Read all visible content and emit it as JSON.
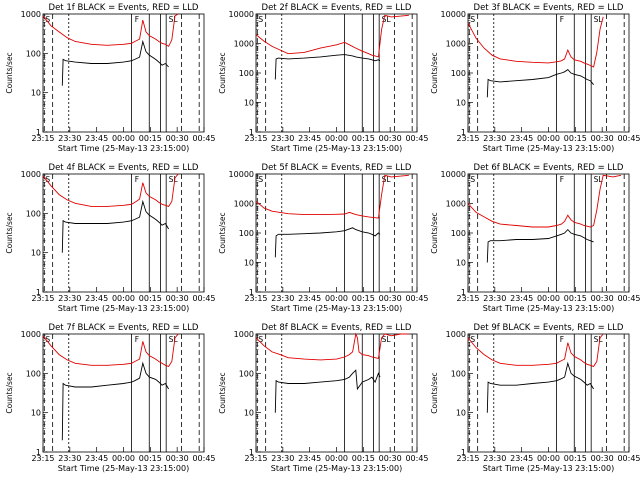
{
  "figure": {
    "background": "#ffffff",
    "events_color": "#000000",
    "lld_color": "#e00000"
  },
  "chart_data": [
    {
      "type": "line",
      "title": "Det 1f BLACK = Events, RED = LLD",
      "xlabel": "Start Time (25-May-13 23:15:00)",
      "ylabel": "Counts/sec",
      "ylog": true,
      "ylim": [
        1,
        1000
      ],
      "xlim": [
        0,
        100
      ],
      "x_ticks": [
        "23:15",
        "23:30",
        "23:45",
        "00:00",
        "00:15",
        "00:30",
        "00:45"
      ],
      "y_ticks": [
        "1",
        "10",
        "100",
        "1000"
      ],
      "markers": [
        "S",
        "F",
        "SL"
      ],
      "series": [
        {
          "name": "Events",
          "x": [
            12,
            12.5,
            14,
            20,
            30,
            40,
            50,
            55,
            57,
            60,
            62,
            64,
            66,
            70,
            72,
            74,
            76,
            78
          ],
          "y": [
            15,
            70,
            65,
            60,
            55,
            55,
            60,
            65,
            70,
            80,
            200,
            110,
            90,
            70,
            60,
            50,
            55,
            45
          ]
        },
        {
          "name": "LLD",
          "x": [
            0,
            5,
            10,
            15,
            20,
            30,
            40,
            50,
            55,
            57,
            60,
            62,
            64,
            66,
            70,
            72,
            74,
            76,
            78,
            80,
            82,
            84
          ],
          "y": [
            900,
            500,
            350,
            250,
            200,
            170,
            160,
            170,
            180,
            200,
            230,
            700,
            350,
            280,
            230,
            200,
            180,
            170,
            150,
            220,
            900,
            1000
          ]
        }
      ]
    },
    {
      "type": "line",
      "title": "Det 2f BLACK = Events, RED = LLD",
      "xlabel": "Start Time (25-May-13 23:15:00)",
      "ylabel": "Counts/sec",
      "ylog": true,
      "ylim": [
        1,
        10000
      ],
      "xlim": [
        0,
        100
      ],
      "x_ticks": [
        "23:15",
        "23:30",
        "23:45",
        "00:00",
        "00:15",
        "00:30",
        "00:45"
      ],
      "y_ticks": [
        "1",
        "10",
        "100",
        "1000",
        "10000"
      ],
      "markers": [
        "S",
        "SL"
      ],
      "series": [
        {
          "name": "Events",
          "x": [
            12,
            12.5,
            14,
            20,
            30,
            40,
            50,
            55,
            60,
            62,
            66,
            70,
            72,
            74,
            76,
            77
          ],
          "y": [
            60,
            300,
            320,
            300,
            320,
            350,
            400,
            420,
            380,
            350,
            320,
            300,
            280,
            260,
            280,
            260
          ]
        },
        {
          "name": "LLD",
          "x": [
            0,
            5,
            10,
            15,
            20,
            30,
            40,
            50,
            55,
            58,
            62,
            66,
            70,
            72,
            74,
            76,
            78,
            80,
            84,
            90,
            95
          ],
          "y": [
            2000,
            1200,
            800,
            600,
            450,
            500,
            700,
            900,
            1100,
            900,
            700,
            550,
            450,
            400,
            380,
            350,
            3000,
            9000,
            8000,
            8500,
            9000
          ]
        }
      ]
    },
    {
      "type": "line",
      "title": "Det 3f BLACK = Events, RED = LLD",
      "xlabel": "Start Time (25-May-13 23:15:00)",
      "ylabel": "Counts/sec",
      "ylog": true,
      "ylim": [
        1,
        10000
      ],
      "xlim": [
        0,
        100
      ],
      "x_ticks": [
        "23:15",
        "23:30",
        "23:45",
        "00:00",
        "00:15",
        "00:30",
        "00:45"
      ],
      "y_ticks": [
        "1",
        "10",
        "100",
        "1000",
        "10000"
      ],
      "markers": [
        "S",
        "F",
        "SL"
      ],
      "series": [
        {
          "name": "Events",
          "x": [
            12,
            12.5,
            14,
            20,
            30,
            40,
            50,
            55,
            58,
            60,
            62,
            64,
            66,
            70,
            72,
            74,
            76,
            78
          ],
          "y": [
            15,
            60,
            55,
            50,
            55,
            60,
            70,
            90,
            100,
            110,
            130,
            100,
            90,
            80,
            70,
            60,
            55,
            40
          ]
        },
        {
          "name": "LLD",
          "x": [
            0,
            5,
            10,
            15,
            20,
            30,
            40,
            50,
            55,
            58,
            60,
            62,
            64,
            66,
            70,
            72,
            74,
            76,
            78,
            80,
            82,
            84
          ],
          "y": [
            5000,
            1500,
            700,
            400,
            300,
            250,
            230,
            220,
            240,
            260,
            300,
            600,
            350,
            280,
            250,
            220,
            200,
            180,
            160,
            500,
            3000,
            8000
          ]
        }
      ]
    },
    {
      "type": "line",
      "title": "Det 4f BLACK = Events, RED = LLD",
      "xlabel": "Start Time (25-May-13 23:15:00)",
      "ylabel": "Counts/sec",
      "ylog": true,
      "ylim": [
        1,
        1000
      ],
      "xlim": [
        0,
        100
      ],
      "x_ticks": [
        "23:15",
        "23:30",
        "23:45",
        "00:00",
        "00:15",
        "00:30",
        "00:45"
      ],
      "y_ticks": [
        "1",
        "10",
        "100",
        "1000"
      ],
      "markers": [
        "S",
        "F",
        "SL"
      ],
      "series": [
        {
          "name": "Events",
          "x": [
            12,
            12.5,
            14,
            20,
            30,
            40,
            50,
            55,
            57,
            60,
            62,
            64,
            66,
            70,
            72,
            74,
            76,
            78
          ],
          "y": [
            10,
            65,
            60,
            55,
            55,
            55,
            60,
            65,
            70,
            80,
            200,
            110,
            90,
            70,
            60,
            50,
            55,
            40
          ]
        },
        {
          "name": "LLD",
          "x": [
            0,
            5,
            10,
            15,
            20,
            30,
            40,
            50,
            55,
            57,
            60,
            62,
            64,
            66,
            70,
            72,
            74,
            76,
            78,
            80,
            82,
            84
          ],
          "y": [
            900,
            500,
            300,
            220,
            180,
            150,
            150,
            160,
            170,
            190,
            230,
            600,
            330,
            270,
            220,
            190,
            170,
            160,
            150,
            200,
            800,
            1000
          ]
        }
      ]
    },
    {
      "type": "line",
      "title": "Det 5f BLACK = Events, RED = LLD",
      "xlabel": "Start Time (25-May-13 23:15:00)",
      "ylabel": "Counts/sec",
      "ylog": true,
      "ylim": [
        1,
        10000
      ],
      "xlim": [
        0,
        100
      ],
      "x_ticks": [
        "23:15",
        "23:30",
        "23:45",
        "00:00",
        "00:15",
        "00:30",
        "00:45"
      ],
      "y_ticks": [
        "1",
        "10",
        "100",
        "1000",
        "10000"
      ],
      "markers": [
        "S",
        "SL"
      ],
      "series": [
        {
          "name": "Events",
          "x": [
            12,
            12.5,
            14,
            20,
            30,
            40,
            50,
            55,
            60,
            62,
            66,
            70,
            72,
            74,
            76,
            77
          ],
          "y": [
            15,
            80,
            90,
            90,
            95,
            100,
            110,
            120,
            150,
            130,
            110,
            100,
            90,
            80,
            100,
            90
          ]
        },
        {
          "name": "LLD",
          "x": [
            0,
            5,
            10,
            15,
            20,
            30,
            40,
            50,
            55,
            58,
            62,
            66,
            70,
            72,
            74,
            76,
            78,
            80,
            84,
            90,
            95
          ],
          "y": [
            1200,
            700,
            550,
            500,
            450,
            420,
            420,
            430,
            440,
            500,
            420,
            380,
            350,
            340,
            330,
            320,
            2000,
            9000,
            8000,
            8500,
            9000
          ]
        }
      ]
    },
    {
      "type": "line",
      "title": "Det 6f BLACK = Events, RED = LLD",
      "xlabel": "Start Time (25-May-13 23:15:00)",
      "ylabel": "Counts/sec",
      "ylog": true,
      "ylim": [
        1,
        10000
      ],
      "xlim": [
        0,
        100
      ],
      "x_ticks": [
        "23:15",
        "23:30",
        "23:45",
        "00:00",
        "00:15",
        "00:30",
        "00:45"
      ],
      "y_ticks": [
        "1",
        "10",
        "100",
        "1000",
        "10000"
      ],
      "markers": [
        "S",
        "F",
        "SL"
      ],
      "series": [
        {
          "name": "Events",
          "x": [
            12,
            12.5,
            14,
            20,
            30,
            40,
            50,
            55,
            58,
            60,
            62,
            64,
            66,
            70,
            72,
            74,
            76,
            78
          ],
          "y": [
            10,
            50,
            55,
            55,
            60,
            60,
            65,
            80,
            90,
            100,
            130,
            100,
            90,
            80,
            70,
            60,
            55,
            50
          ]
        },
        {
          "name": "LLD",
          "x": [
            0,
            5,
            10,
            15,
            20,
            30,
            40,
            50,
            55,
            58,
            60,
            62,
            64,
            66,
            70,
            72,
            74,
            76,
            78,
            80,
            82,
            84,
            90,
            95
          ],
          "y": [
            1000,
            500,
            350,
            250,
            200,
            180,
            160,
            160,
            180,
            200,
            250,
            400,
            280,
            230,
            200,
            180,
            170,
            160,
            180,
            600,
            3000,
            9000,
            8000,
            9000
          ]
        }
      ]
    },
    {
      "type": "line",
      "title": "Det 7f BLACK = Events, RED = LLD",
      "xlabel": "Start Time (25-May-13 23:15:00)",
      "ylabel": "Counts/sec",
      "ylog": true,
      "ylim": [
        1,
        1000
      ],
      "xlim": [
        0,
        100
      ],
      "x_ticks": [
        "23:15",
        "23:30",
        "23:45",
        "00:00",
        "00:15",
        "00:30",
        "00:45"
      ],
      "y_ticks": [
        "1",
        "10",
        "100",
        "1000"
      ],
      "markers": [
        "S",
        "F",
        "SL"
      ],
      "series": [
        {
          "name": "Events",
          "x": [
            12,
            12.5,
            14,
            20,
            30,
            40,
            50,
            55,
            57,
            60,
            62,
            64,
            66,
            70,
            72,
            74,
            76,
            78
          ],
          "y": [
            2,
            55,
            50,
            45,
            45,
            50,
            55,
            60,
            65,
            75,
            180,
            100,
            80,
            70,
            60,
            50,
            55,
            40
          ]
        },
        {
          "name": "LLD",
          "x": [
            0,
            5,
            10,
            15,
            20,
            30,
            40,
            50,
            55,
            57,
            60,
            62,
            64,
            66,
            70,
            72,
            74,
            76,
            78,
            80,
            82,
            84
          ],
          "y": [
            900,
            500,
            300,
            220,
            180,
            160,
            160,
            170,
            180,
            200,
            230,
            650,
            350,
            280,
            230,
            200,
            180,
            160,
            150,
            200,
            800,
            1000
          ]
        }
      ]
    },
    {
      "type": "line",
      "title": "Det 8f BLACK = Events, RED = LLD",
      "xlabel": "Start Time (25-May-13 23:15:00)",
      "ylabel": "Counts/sec",
      "ylog": true,
      "ylim": [
        1,
        1000
      ],
      "xlim": [
        0,
        100
      ],
      "x_ticks": [
        "23:15",
        "23:30",
        "23:45",
        "00:00",
        "00:15",
        "00:30",
        "00:45"
      ],
      "y_ticks": [
        "1",
        "10",
        "100",
        "1000"
      ],
      "markers": [
        "S",
        "SL"
      ],
      "series": [
        {
          "name": "Events",
          "x": [
            12,
            12.5,
            14,
            20,
            30,
            40,
            50,
            55,
            58,
            60,
            62,
            63,
            66,
            70,
            72,
            74,
            76,
            77
          ],
          "y": [
            10,
            65,
            60,
            55,
            55,
            60,
            65,
            70,
            80,
            100,
            120,
            40,
            60,
            70,
            80,
            60,
            100,
            80
          ]
        },
        {
          "name": "LLD",
          "x": [
            0,
            5,
            10,
            15,
            20,
            30,
            40,
            50,
            55,
            58,
            60,
            62,
            63,
            64,
            66,
            70,
            72,
            74,
            76,
            78,
            80,
            84,
            90,
            95
          ],
          "y": [
            800,
            500,
            350,
            300,
            250,
            230,
            220,
            230,
            260,
            300,
            350,
            1000,
            800,
            350,
            300,
            280,
            260,
            250,
            240,
            800,
            1000,
            900,
            1000,
            1000
          ]
        }
      ]
    },
    {
      "type": "line",
      "title": "Det 9f BLACK = Events, RED = LLD",
      "xlabel": "Start Time (25-May-13 23:15:00)",
      "ylabel": "Counts/sec",
      "ylog": true,
      "ylim": [
        1,
        1000
      ],
      "xlim": [
        0,
        100
      ],
      "x_ticks": [
        "23:15",
        "23:30",
        "23:45",
        "00:00",
        "00:15",
        "00:30",
        "00:45"
      ],
      "y_ticks": [
        "1",
        "10",
        "100",
        "1000"
      ],
      "markers": [
        "S",
        "F",
        "SL"
      ],
      "series": [
        {
          "name": "Events",
          "x": [
            12,
            12.5,
            14,
            20,
            30,
            40,
            50,
            55,
            57,
            60,
            62,
            64,
            66,
            70,
            72,
            74,
            76,
            78
          ],
          "y": [
            10,
            60,
            55,
            50,
            50,
            55,
            60,
            65,
            70,
            80,
            180,
            100,
            85,
            70,
            60,
            50,
            55,
            40
          ]
        },
        {
          "name": "LLD",
          "x": [
            0,
            5,
            10,
            15,
            20,
            30,
            40,
            50,
            55,
            57,
            60,
            62,
            64,
            66,
            70,
            72,
            74,
            76,
            78,
            80,
            82,
            84
          ],
          "y": [
            800,
            450,
            300,
            220,
            180,
            160,
            160,
            170,
            180,
            200,
            230,
            600,
            330,
            270,
            220,
            190,
            170,
            160,
            150,
            200,
            800,
            1000
          ]
        }
      ]
    }
  ]
}
